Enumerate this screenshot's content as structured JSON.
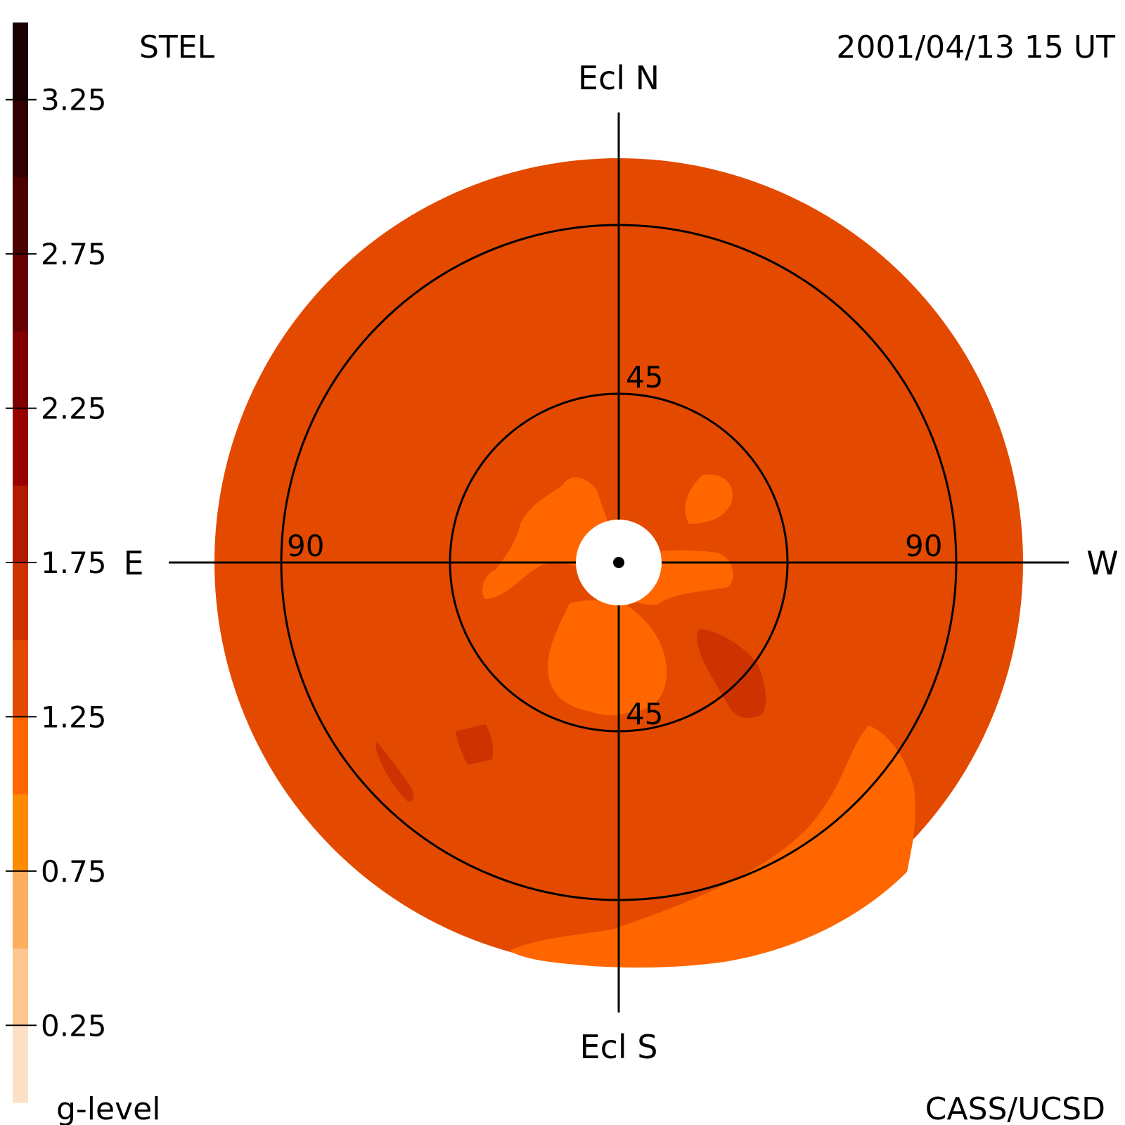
{
  "header": {
    "instrument": "STEL",
    "timestamp": "2001/04/13 15 UT"
  },
  "footer": {
    "colorbar_label": "g-level",
    "credit": "CASS/UCSD"
  },
  "directions": {
    "north": "Ecl N",
    "south": "Ecl S",
    "east": "E",
    "west": "W"
  },
  "ring_labels": {
    "inner_top": "45",
    "inner_bottom": "45",
    "outer_left": "90",
    "outer_right": "90"
  },
  "chart_data": {
    "type": "heatmap",
    "projection": "fisheye sky map centered on Sun, ecliptic coordinates",
    "colorbar": {
      "label": "g-level",
      "range": [
        0,
        3.5
      ],
      "step": 0.25,
      "tick_labels": [
        "3.25",
        "2.75",
        "2.25",
        "1.75",
        "1.25",
        "0.75",
        "0.25"
      ],
      "tick_values": [
        3.25,
        2.75,
        2.25,
        1.75,
        1.25,
        0.75,
        0.25
      ],
      "band_colors": [
        "#fde0c5",
        "#fbc68f",
        "#fcae5f",
        "#fe8a00",
        "#ff6600",
        "#e34a00",
        "#cc3300",
        "#b31b00",
        "#990000",
        "#800000",
        "#660000",
        "#4d0000",
        "#330000",
        "#1a0000"
      ]
    },
    "elongation_rings_deg": [
      45,
      90
    ],
    "map_extent_deg": 108,
    "background_level": 1.1,
    "regions": [
      {
        "level": 0.85,
        "description": "enhanced lobes near Sun"
      },
      {
        "level": 0.85,
        "description": "arc in lower-right sky"
      },
      {
        "level": 1.4,
        "description": "darker blobs lower-left and lower-right"
      }
    ],
    "colors": {
      "background_level": "#e34a00",
      "bright_level": "#ff6600",
      "dark_level": "#cc3300",
      "sun_occulter": "#ffffff",
      "lines": "#000000"
    }
  }
}
